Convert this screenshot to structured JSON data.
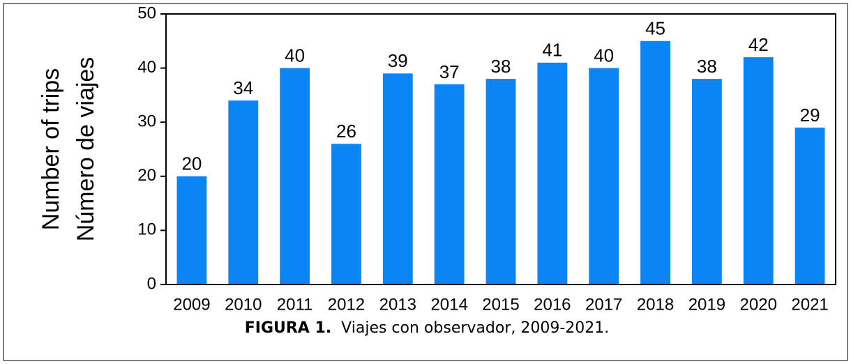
{
  "chart_data": {
    "type": "bar",
    "ylabel": [
      "Number of trips",
      "Número de viajes"
    ],
    "categories": [
      "2009",
      "2010",
      "2011",
      "2012",
      "2013",
      "2014",
      "2015",
      "2016",
      "2017",
      "2018",
      "2019",
      "2020",
      "2021"
    ],
    "values": [
      20,
      34,
      40,
      26,
      39,
      37,
      38,
      41,
      40,
      45,
      38,
      42,
      29
    ],
    "color": "#0b84f5",
    "ylim": [
      0,
      50
    ],
    "yticks": [
      0,
      10,
      20,
      30,
      40,
      50
    ],
    "grid": false
  },
  "caption": {
    "label": "FIGURA 1.",
    "text": "Viajes con observador, 2009-2021."
  }
}
